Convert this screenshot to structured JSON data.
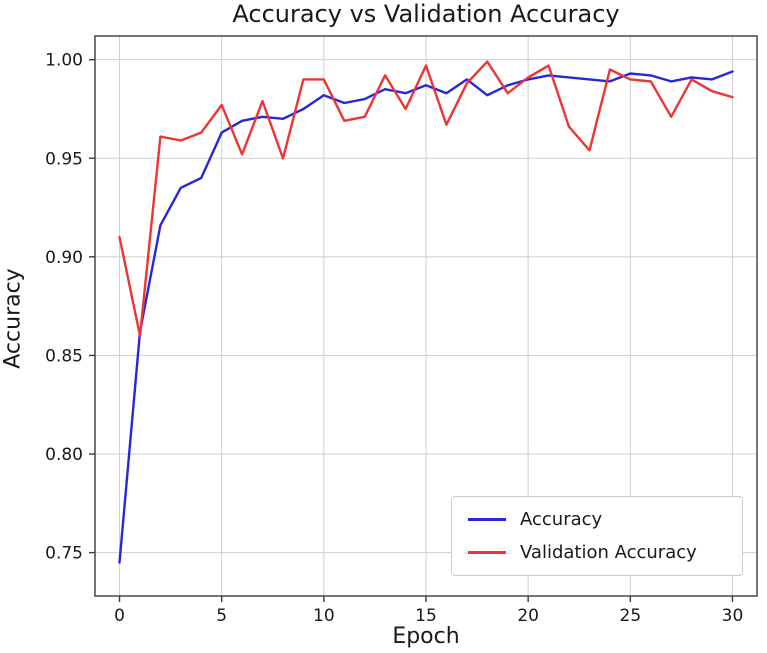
{
  "chart_data": {
    "type": "line",
    "title": "Accuracy vs Validation Accuracy",
    "xlabel": "Epoch",
    "ylabel": "Accuracy",
    "xlim": [
      -1.2,
      31.2
    ],
    "ylim": [
      0.728,
      1.012
    ],
    "xticks": [
      0,
      5,
      10,
      15,
      20,
      25,
      30
    ],
    "yticks": [
      0.75,
      0.8,
      0.85,
      0.9,
      0.95,
      1.0
    ],
    "grid": true,
    "grid_color": "#cfcfcf",
    "spine_color": "#3a3a3a",
    "legend_position": "lower right",
    "x": [
      0,
      1,
      2,
      3,
      4,
      5,
      6,
      7,
      8,
      9,
      10,
      11,
      12,
      13,
      14,
      15,
      16,
      17,
      18,
      19,
      20,
      21,
      22,
      23,
      24,
      25,
      26,
      27,
      28,
      29,
      30
    ],
    "series": [
      {
        "name": "Accuracy",
        "color": "#2727d8",
        "values": [
          0.745,
          0.862,
          0.916,
          0.935,
          0.94,
          0.963,
          0.969,
          0.971,
          0.97,
          0.975,
          0.982,
          0.978,
          0.98,
          0.985,
          0.983,
          0.987,
          0.983,
          0.99,
          0.982,
          0.987,
          0.99,
          0.992,
          0.991,
          0.99,
          0.989,
          0.993,
          0.992,
          0.989,
          0.991,
          0.99,
          0.994
        ]
      },
      {
        "name": "Validation Accuracy",
        "color": "#ee3434",
        "values": [
          0.91,
          0.86,
          0.961,
          0.959,
          0.963,
          0.977,
          0.952,
          0.979,
          0.95,
          0.99,
          0.99,
          0.969,
          0.971,
          0.992,
          0.975,
          0.997,
          0.967,
          0.988,
          0.999,
          0.983,
          0.991,
          0.997,
          0.966,
          0.954,
          0.995,
          0.99,
          0.989,
          0.971,
          0.99,
          0.984,
          0.981
        ]
      }
    ]
  }
}
